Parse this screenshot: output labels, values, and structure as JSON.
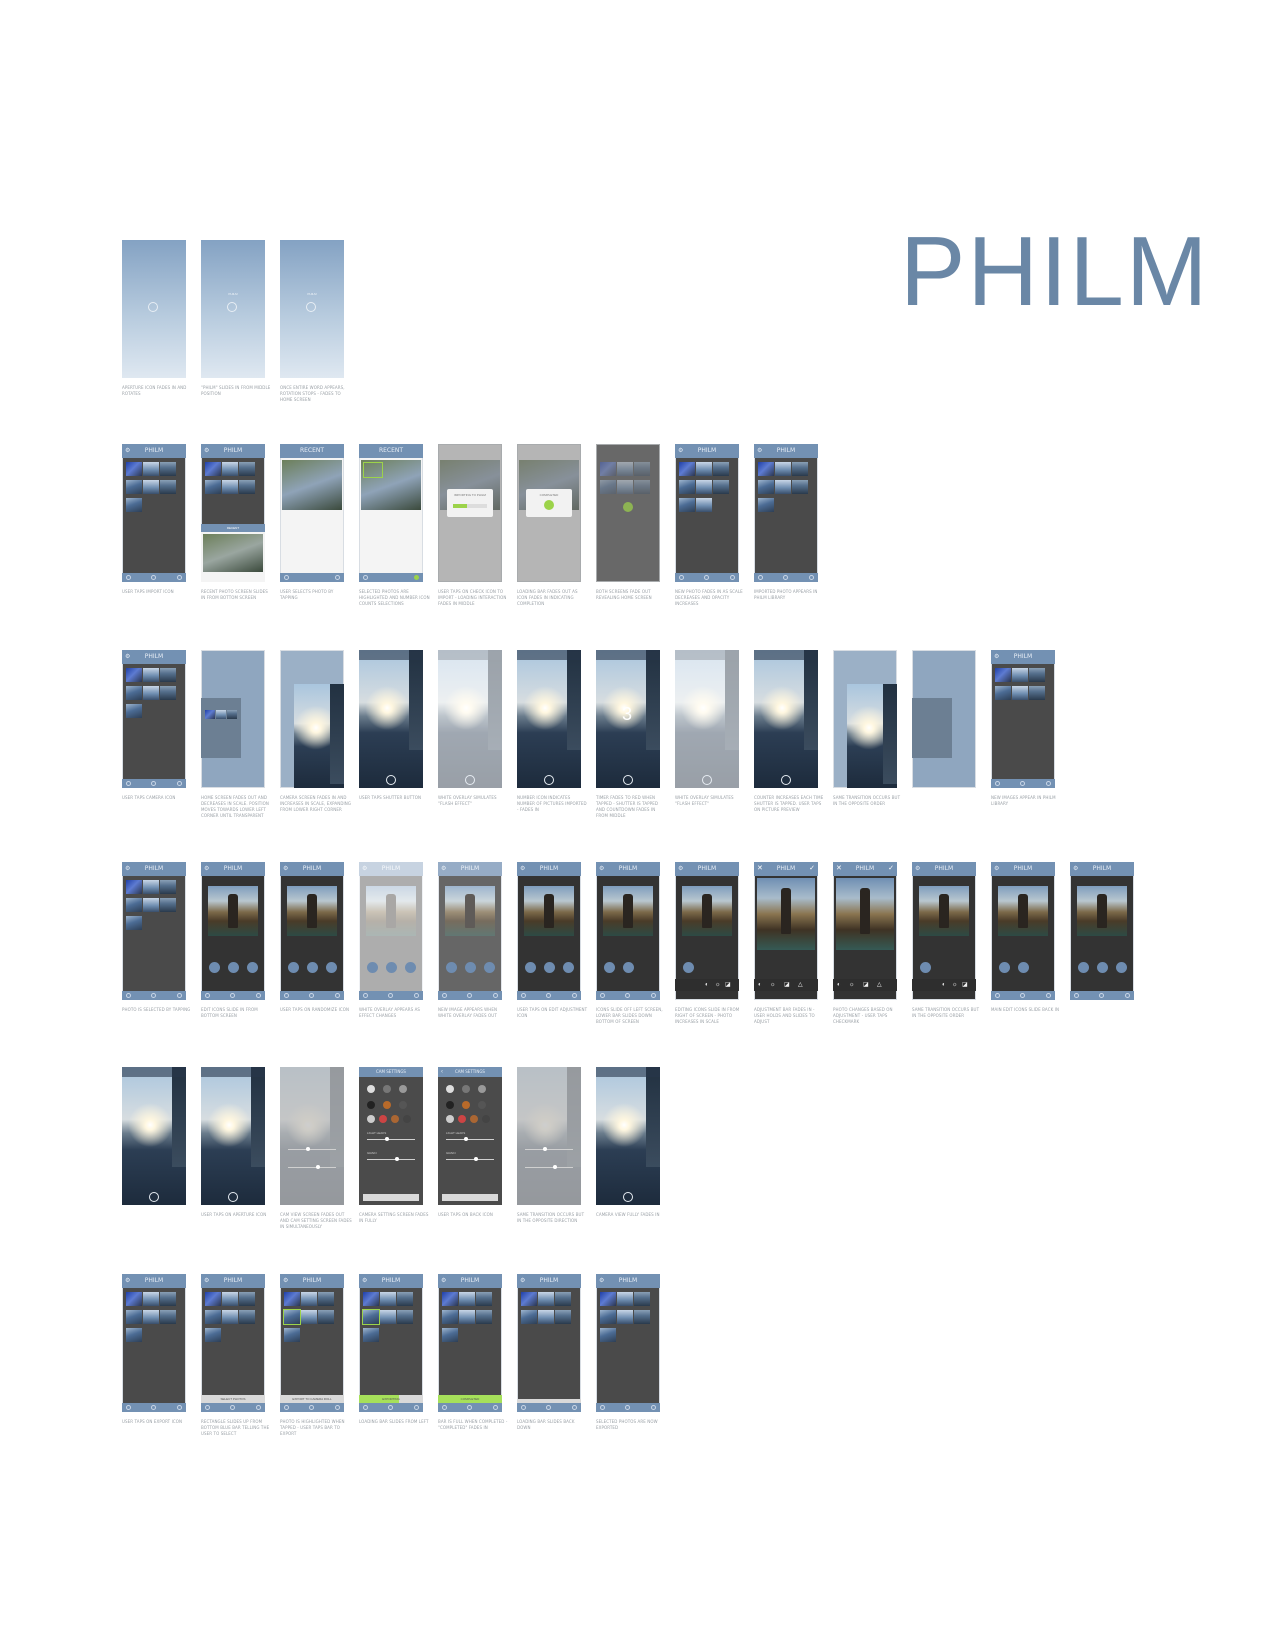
{
  "brand": "PHILM",
  "app_title": "PHILM",
  "icons": {
    "grid_header": "aperture-icon",
    "import": "import-icon",
    "camera": "camera-icon",
    "export": "export-icon",
    "confirm": "checkmark-icon",
    "close": "close-icon"
  },
  "colors": {
    "brand": "#6a87a6",
    "header": "#7391b3",
    "dark_screen": "#4a4a4a",
    "success": "#9cd34a"
  },
  "rows": {
    "splash": {
      "frames": [
        {
          "caption": "APERTURE ICON FADES IN AND ROTATES",
          "label": ""
        },
        {
          "caption": "\"PHILM\" SLIDES IN FROM MIDDLE POSITION",
          "label": "PHILM"
        },
        {
          "caption": "ONCE ENTIRE WORD APPEARS, ROTATION STOPS - FADES TO HOME SCREEN",
          "label": "PHILM"
        }
      ]
    },
    "import": {
      "frames": [
        {
          "caption": "USER TAPS IMPORT ICON"
        },
        {
          "caption": "RECENT PHOTO SCREEN SLIDES IN FROM BOTTOM SCREEN",
          "label": "RECENT"
        },
        {
          "caption": "USER SELECTS PHOTO BY TAPPING",
          "label": "RECENT"
        },
        {
          "caption": "SELECTED PHOTOS ARE HIGHLIGHTED AND NUMBER ICON COUNTS SELECTIONS",
          "label": "RECENT"
        },
        {
          "caption": "USER TAPS ON CHECK ICON TO IMPORT - LOADING INTERACTION FADES IN MIDDLE",
          "modal": "IMPORTING TO PHILM"
        },
        {
          "caption": "LOADING BAR FADES OUT AS ICON FADES IN INDICATING COMPLETION",
          "modal": "COMPLETED"
        },
        {
          "caption": "BOTH SCREENS FADE OUT REVEALING HOME SCREEN"
        },
        {
          "caption": "NEW PHOTO FADES IN AS SCALE DECREASES AND OPACITY INCREASES"
        },
        {
          "caption": "IMPORTED PHOTO APPEARS IN PHILM LIBRARY"
        }
      ]
    },
    "camera": {
      "frames": [
        {
          "caption": "USER TAPS CAMERA ICON"
        },
        {
          "caption": "HOME SCREEN FADES OUT AND DECREASES IN SCALE. POSITION MOVES TOWARDS LOWER LEFT CORNER UNTIL TRANSPARENT"
        },
        {
          "caption": "CAMERA SCREEN FADES IN AND INCREASES IN SCALE, EXPANDING FROM LOWER RIGHT CORNER"
        },
        {
          "caption": "USER TAPS SHUTTER BUTTON"
        },
        {
          "caption": "WHITE OVERLAY SIMULATES \"FLASH EFFECT\""
        },
        {
          "caption": "NUMBER ICON INDICATES NUMBER OF PICTURES IMPORTED - FADES IN"
        },
        {
          "caption": "TIMER FADES TO RED WHEN TAPPED - SHUTTER IS TAPPED AND COUNTDOWN FADES IN FROM MIDDLE",
          "countdown": "3"
        },
        {
          "caption": "WHITE OVERLAY SIMULATES \"FLASH EFFECT\""
        },
        {
          "caption": "COUNTER INCREASES EACH TIME SHUTTER IS TAPPED. USER TAPS ON PICTURE PREVIEW"
        },
        {
          "caption": "SAME TRANSITION OCCURS BUT IN THE OPPOSITE ORDER"
        },
        {
          "caption": ""
        },
        {
          "caption": "NEW IMAGES APPEAR IN PHILM LIBRARY"
        }
      ]
    },
    "edit": {
      "frames": [
        {
          "caption": "PHOTO IS SELECTED BY TAPPING"
        },
        {
          "caption": "EDIT ICONS SLIDE IN FROM BOTTOM SCREEN"
        },
        {
          "caption": "USER TAPS ON RANDOMIZE ICON"
        },
        {
          "caption": "WHITE OVERLAY APPEARS AS EFFECT CHANGES"
        },
        {
          "caption": "NEW IMAGE APPEARS WHEN WHITE OVERLAY FADES OUT"
        },
        {
          "caption": "USER TAPS ON EDIT ADJUSTMENT ICON"
        },
        {
          "caption": "ICONS SLIDE OFF LEFT SCREEN, LOWER BAR SLIDES DOWN BOTTOM OF SCREEN"
        },
        {
          "caption": "EDITING ICONS SLIDE IN FROM RIGHT OF SCREEN - PHOTO INCREASES IN SCALE"
        },
        {
          "caption": "ADJUSTMENT BAR FADES IN - USER HOLDS AND SLIDES TO ADJUST"
        },
        {
          "caption": "PHOTO CHANGES BASED ON ADJUSTMENT - USER TAPS CHECKMARK"
        },
        {
          "caption": "SAME TRANSITION OCCURS BUT IN THE OPPOSITE ORDER"
        },
        {
          "caption": "MAIN EDIT ICONS SLIDE BACK IN"
        },
        {
          "caption": ""
        }
      ]
    },
    "settings": {
      "title": "CAM SETTINGS",
      "labels": {
        "light": "LIGHT LEAKS",
        "grain": "GRAIN"
      },
      "frames": [
        {
          "caption": ""
        },
        {
          "caption": "USER TAPS ON APERTURE ICON"
        },
        {
          "caption": "CAM VIEW SCREEN FADES OUT AND CAM SETTING SCREEN FADES IN SIMULTANEOUSLY"
        },
        {
          "caption": "CAMERA SETTING SCREEN FADES IN FULLY"
        },
        {
          "caption": "USER TAPS ON BACK ICON"
        },
        {
          "caption": "SAME TRANSITION OCCURS BUT IN THE OPPOSITE DIRECTION"
        },
        {
          "caption": "CAMERA VIEW FULLY FADES IN"
        }
      ]
    },
    "export": {
      "frames": [
        {
          "caption": "USER TAPS ON EXPORT ICON"
        },
        {
          "caption": "RECTANGLE SLIDES UP FROM BOTTOM BLUE BAR TELLING THE USER TO SELECT",
          "bar": "SELECT PHOTOS"
        },
        {
          "caption": "PHOTO IS HIGHLIGHTED WHEN TAPPED - USER TAPS BAR TO EXPORT",
          "bar": "EXPORT TO CAMERA ROLL"
        },
        {
          "caption": "LOADING BAR SLIDES FROM LEFT",
          "bar": "EXPORTING"
        },
        {
          "caption": "BAR IS FULL WHEN COMPLETED - \"COMPLETED\" FADES IN",
          "bar": "COMPLETED"
        },
        {
          "caption": "LOADING BAR SLIDES BACK DOWN"
        },
        {
          "caption": "SELECTED PHOTOS ARE NOW EXPORTED"
        }
      ]
    }
  }
}
